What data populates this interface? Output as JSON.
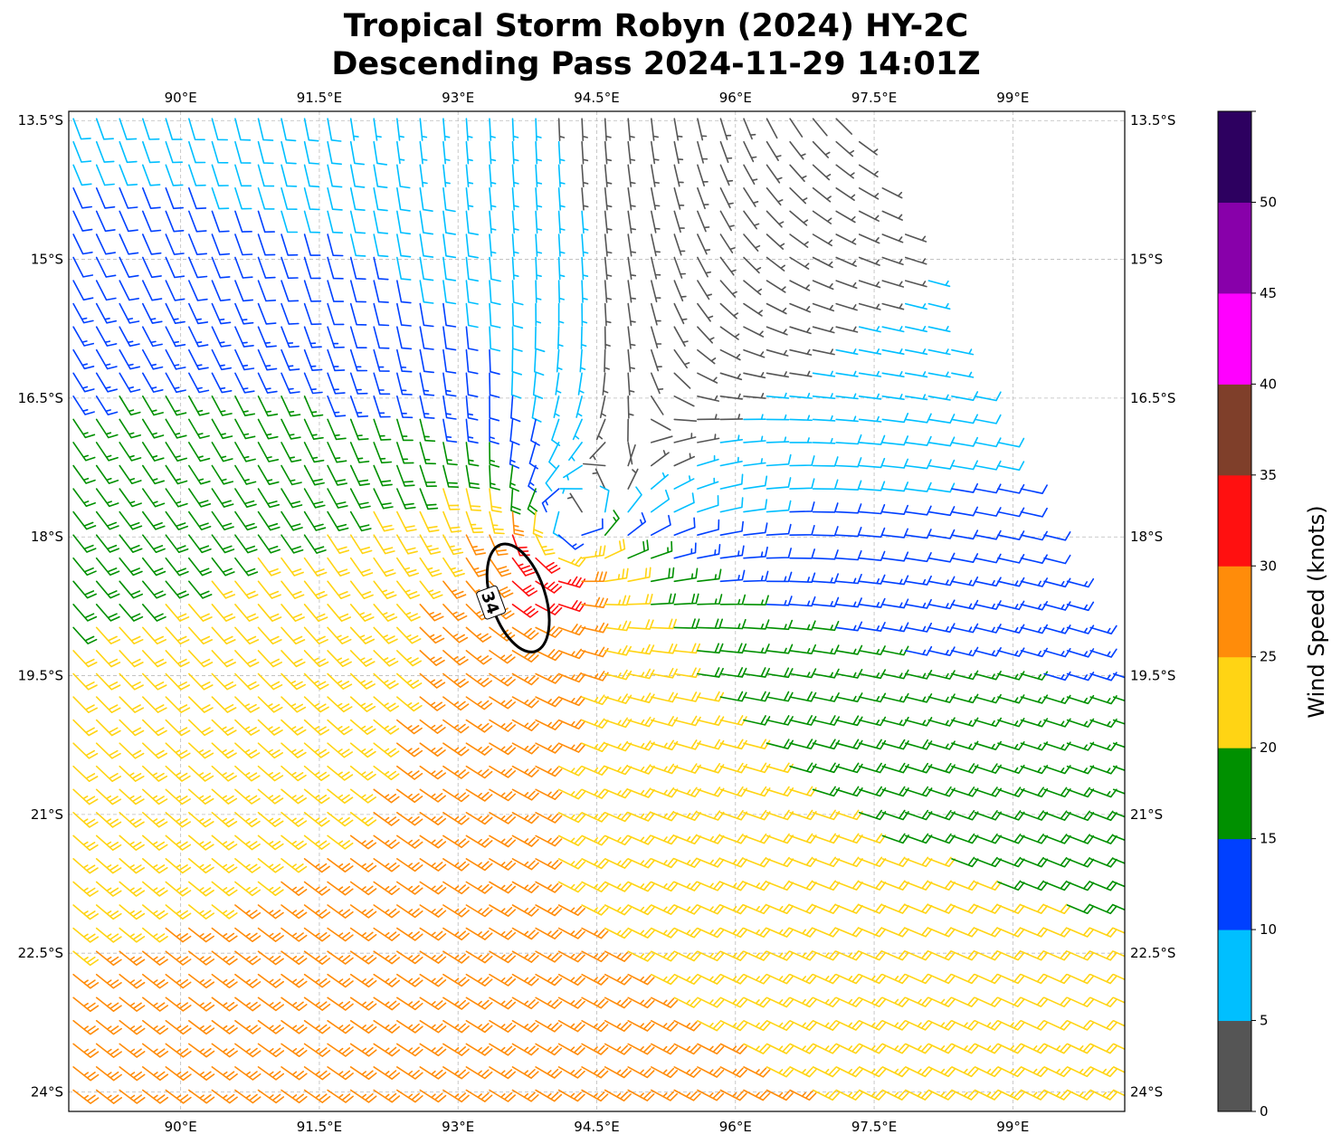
{
  "chart_data": {
    "type": "wind-barb",
    "title": [
      "Tropical Storm Robyn (2024) HY-2C",
      "Descending Pass 2024-11-29 14:01Z"
    ],
    "x_ticks": [
      90,
      91.5,
      93,
      94.5,
      96,
      97.5,
      99
    ],
    "x_tick_labels": [
      "90°E",
      "91.5°E",
      "93°E",
      "94.5°E",
      "96°E",
      "97.5°E",
      "99°E"
    ],
    "y_ticks": [
      -13.5,
      -15,
      -16.5,
      -18,
      -19.5,
      -21,
      -22.5,
      -24
    ],
    "y_tick_labels": [
      "13.5°S",
      "15°S",
      "16.5°S",
      "18°S",
      "19.5°S",
      "21°S",
      "22.5°S",
      "24°S"
    ],
    "xlim": [
      88.79,
      100.21
    ],
    "ylim": [
      -24.21,
      -13.4
    ],
    "grid": true,
    "colorbar": {
      "label": "Wind Speed (knots)",
      "bounds": [
        0,
        5,
        10,
        15,
        20,
        25,
        30,
        35,
        40,
        45,
        50,
        55
      ],
      "tick_values": [
        0,
        5,
        10,
        15,
        20,
        25,
        30,
        35,
        40,
        45,
        50
      ],
      "tick_labels": [
        "0",
        "5",
        "10",
        "15",
        "20",
        "25",
        "30",
        "35",
        "40",
        "45",
        "50"
      ],
      "colors": [
        "#555555",
        "#00bfff",
        "#0040ff",
        "#009000",
        "#ffd414",
        "#ff8c0a",
        "#ff1010",
        "#7f3f2a",
        "#ff00ff",
        "#8800aa",
        "#2d0060"
      ]
    },
    "contour": {
      "level": 34,
      "label": "34",
      "center_lon": 93.65,
      "center_lat": -18.66
    },
    "wind_field": {
      "grid_spacing_deg": 0.25,
      "storm_center_lon": 94.1,
      "storm_center_lat": -18.0,
      "vortex_vmax_kt": 22,
      "vortex_rmax_deg": 0.45,
      "swath_edge": [
        [
          97.25,
          -13.4
        ],
        [
          100.21,
          -19.73
        ]
      ]
    }
  }
}
